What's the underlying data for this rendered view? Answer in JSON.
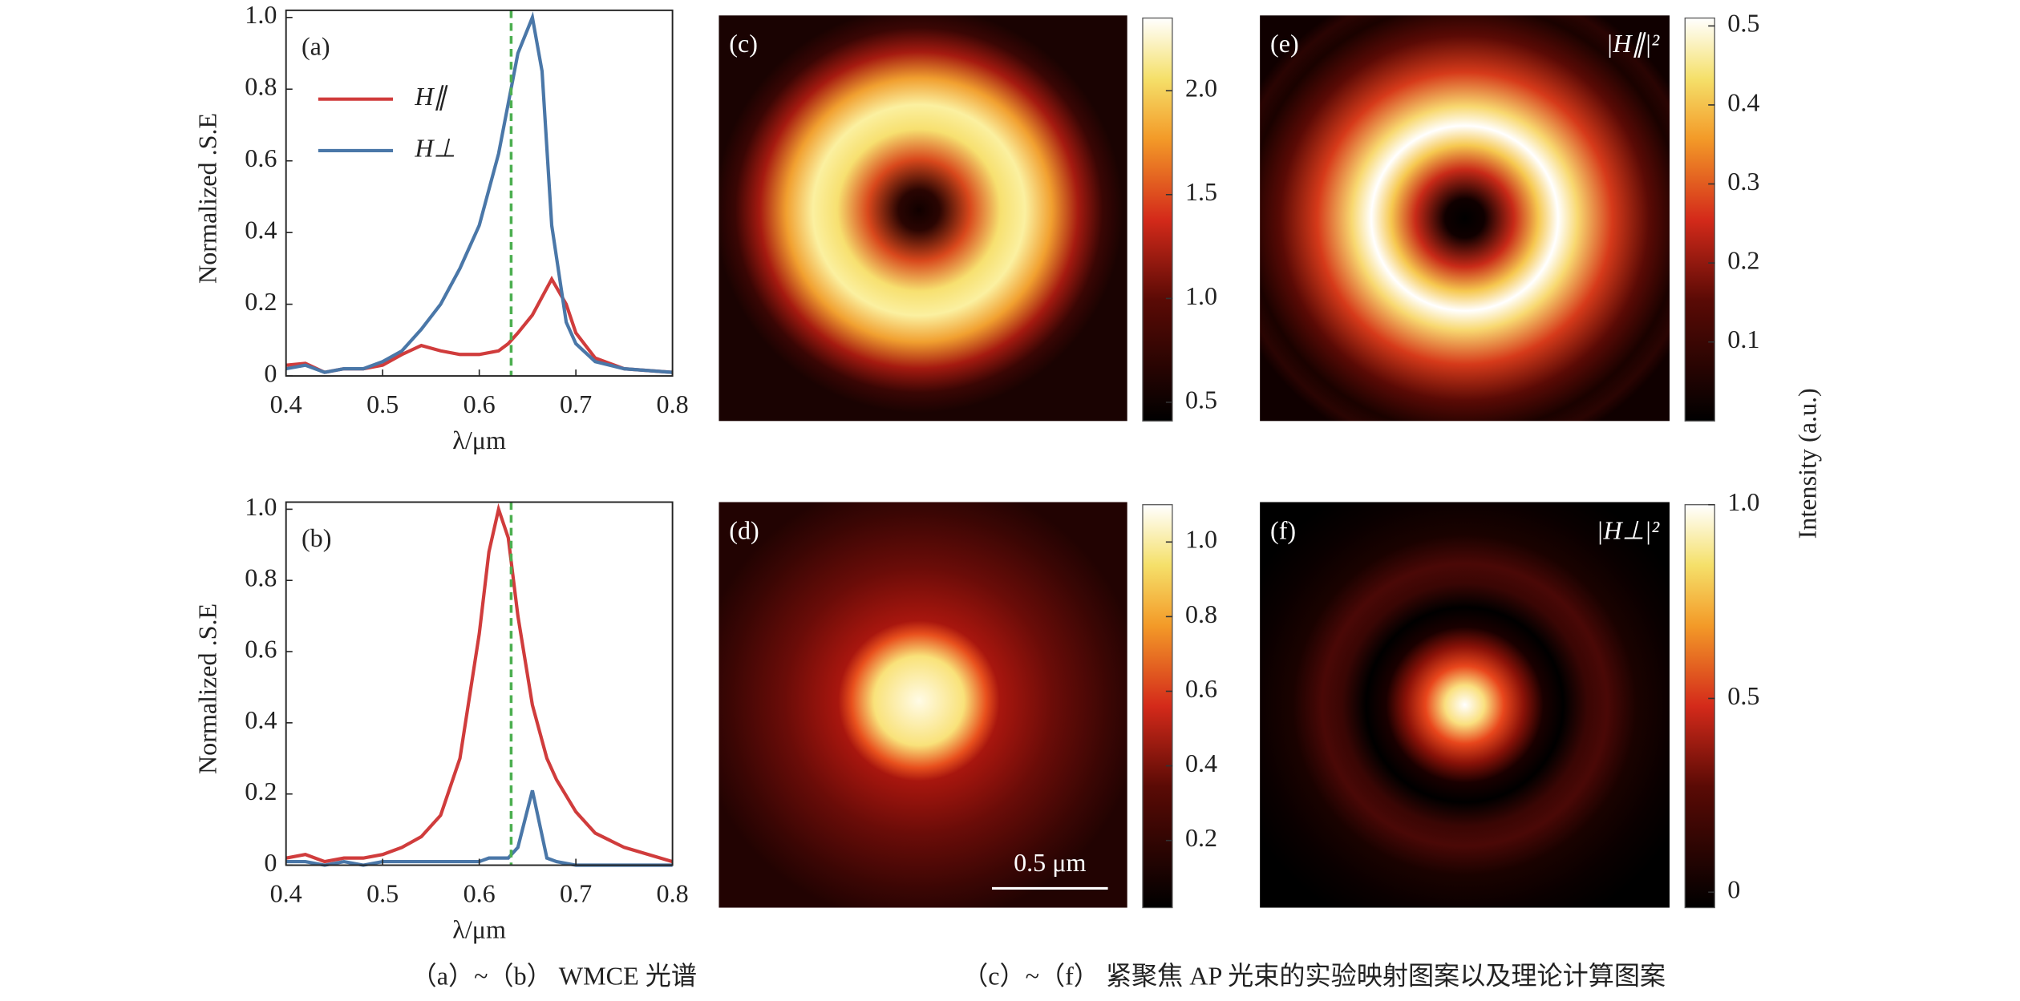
{
  "chart_data": [
    {
      "type": "line",
      "panel": "(a)",
      "xlabel": "λ/μm",
      "ylabel": "Normalized .S.E",
      "xlim": [
        0.4,
        0.8
      ],
      "xticks": [
        0.4,
        0.5,
        0.6,
        0.7,
        0.8
      ],
      "ylim": [
        0,
        1.02
      ],
      "yticks": [
        0,
        0.2,
        0.4,
        0.6,
        0.8,
        {
          "value": 1,
          "label": "1.0"
        }
      ],
      "legend": "upper left",
      "reference_x": 0.633,
      "reference_color": "#4caf50",
      "x": [
        0.4,
        0.42,
        0.44,
        0.46,
        0.48,
        0.5,
        0.52,
        0.54,
        0.56,
        0.58,
        0.6,
        0.62,
        0.63,
        0.64,
        0.655,
        0.665,
        0.675,
        0.69,
        0.7,
        0.72,
        0.75,
        0.8
      ],
      "series": [
        {
          "name": "H∥",
          "color": "#d03c3c",
          "values": [
            0.03,
            0.035,
            0.01,
            0.02,
            0.02,
            0.03,
            0.06,
            0.085,
            0.07,
            0.06,
            0.06,
            0.07,
            0.09,
            0.12,
            0.17,
            0.22,
            0.27,
            0.2,
            0.12,
            0.05,
            0.02,
            0.01
          ]
        },
        {
          "name": "H⊥",
          "color": "#4a77a8",
          "values": [
            0.02,
            0.03,
            0.01,
            0.02,
            0.02,
            0.04,
            0.07,
            0.13,
            0.2,
            0.3,
            0.42,
            0.62,
            0.76,
            0.9,
            1.0,
            0.85,
            0.42,
            0.15,
            0.09,
            0.04,
            0.02,
            0.01
          ]
        }
      ]
    },
    {
      "type": "line",
      "panel": "(b)",
      "xlabel": "λ/μm",
      "ylabel": "Normalized .S.E",
      "xlim": [
        0.4,
        0.8
      ],
      "xticks": [
        0.4,
        0.5,
        0.6,
        0.7,
        0.8
      ],
      "ylim": [
        0,
        1.02
      ],
      "yticks": [
        0,
        0.2,
        0.4,
        0.6,
        0.8,
        {
          "value": 1,
          "label": "1.0"
        }
      ],
      "reference_x": 0.633,
      "reference_color": "#4caf50",
      "x": [
        0.4,
        0.42,
        0.44,
        0.46,
        0.48,
        0.5,
        0.52,
        0.54,
        0.56,
        0.58,
        0.6,
        0.61,
        0.62,
        0.63,
        0.64,
        0.655,
        0.67,
        0.68,
        0.7,
        0.72,
        0.75,
        0.8
      ],
      "series": [
        {
          "color": "#d03c3c",
          "values": [
            0.02,
            0.03,
            0.01,
            0.02,
            0.02,
            0.03,
            0.05,
            0.08,
            0.14,
            0.3,
            0.65,
            0.88,
            1.0,
            0.92,
            0.7,
            0.45,
            0.3,
            0.24,
            0.15,
            0.09,
            0.05,
            0.01
          ]
        },
        {
          "color": "#4a77a8",
          "values": [
            0.01,
            0.01,
            0,
            0.01,
            0,
            0.01,
            0.01,
            0.01,
            0.01,
            0.01,
            0.01,
            0.02,
            0.02,
            0.02,
            0.05,
            0.21,
            0.02,
            0.01,
            0,
            0,
            0,
            0
          ]
        }
      ]
    },
    {
      "type": "heatmap",
      "panel": "(c)",
      "clim": [
        0.41,
        2.35
      ],
      "cticks": [
        0.5,
        {
          "value": 1,
          "label": "1.0"
        },
        1.5,
        {
          "value": 2,
          "label": "2.0"
        }
      ]
    },
    {
      "type": "heatmap",
      "panel": "(d)",
      "clim": [
        0.02,
        1.1
      ],
      "scale_bar": "0.5 μm",
      "cticks": [
        0.2,
        0.4,
        0.6,
        0.8,
        {
          "value": 1,
          "label": "1.0"
        }
      ]
    },
    {
      "type": "heatmap",
      "panel": "(e)",
      "annotation": "|H∥|²",
      "clim": [
        0,
        0.51
      ],
      "cticks": [
        0.1,
        0.2,
        0.3,
        0.4,
        0.5
      ]
    },
    {
      "type": "heatmap",
      "panel": "(f)",
      "annotation": "|H⊥|²",
      "clim": [
        -0.04,
        1.0
      ],
      "cticks": [
        0,
        0.5,
        {
          "value": 1,
          "label": "1.0"
        }
      ]
    }
  ],
  "colorbar_label": "Intensity (a.u.)",
  "captions": [
    "（a）~（b） WMCE 光谱",
    "（c）~（f） 紧聚焦 AP 光束的实验映射图案以及理论计算图案"
  ]
}
